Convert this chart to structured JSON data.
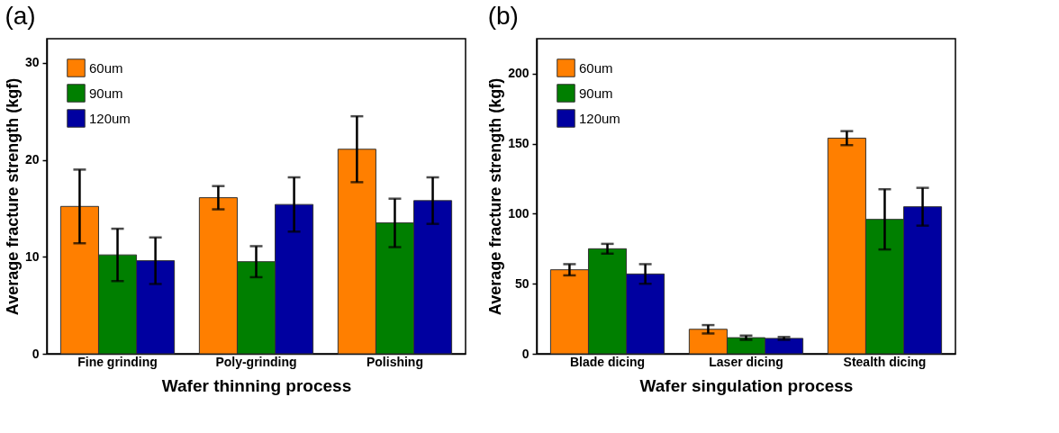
{
  "chart_data": [
    {
      "type": "bar",
      "title": "(a)",
      "xlabel": "Wafer thinning process",
      "ylabel": "Average fracture strength (kgf)",
      "categories": [
        "Fine grinding",
        "Poly-grinding",
        "Polishing"
      ],
      "ylim": [
        0,
        32.5
      ],
      "yticks": [
        0,
        10,
        20,
        30
      ],
      "grid": false,
      "legend": "top left",
      "series": [
        {
          "name": "60um",
          "color": "#ff7f00",
          "values": [
            15.2,
            16.1,
            21.1
          ],
          "errors": [
            3.8,
            1.2,
            3.4
          ]
        },
        {
          "name": "90um",
          "color": "#007f00",
          "values": [
            10.2,
            9.5,
            13.5
          ],
          "errors": [
            2.7,
            1.6,
            2.5
          ]
        },
        {
          "name": "120um",
          "color": "#0000a0",
          "values": [
            9.6,
            15.4,
            15.8
          ],
          "errors": [
            2.4,
            2.8,
            2.4
          ]
        }
      ]
    },
    {
      "type": "bar",
      "title": "(b)",
      "xlabel": "Wafer singulation process",
      "ylabel": "Average fracture strength (kgf)",
      "categories": [
        "Blade dicing",
        "Laser dicing",
        "Stealth dicing"
      ],
      "ylim": [
        0,
        225
      ],
      "yticks": [
        0,
        50,
        100,
        150,
        200
      ],
      "grid": false,
      "legend": "top left",
      "series": [
        {
          "name": "60um",
          "color": "#ff7f00",
          "values": [
            60,
            17.5,
            154
          ],
          "errors": [
            4,
            3,
            5
          ]
        },
        {
          "name": "90um",
          "color": "#007f00",
          "values": [
            75,
            11.5,
            96
          ],
          "errors": [
            3.5,
            1.5,
            21.5
          ]
        },
        {
          "name": "120um",
          "color": "#0000a0",
          "values": [
            57,
            11,
            105
          ],
          "errors": [
            7,
            1,
            13.5
          ]
        }
      ]
    }
  ]
}
